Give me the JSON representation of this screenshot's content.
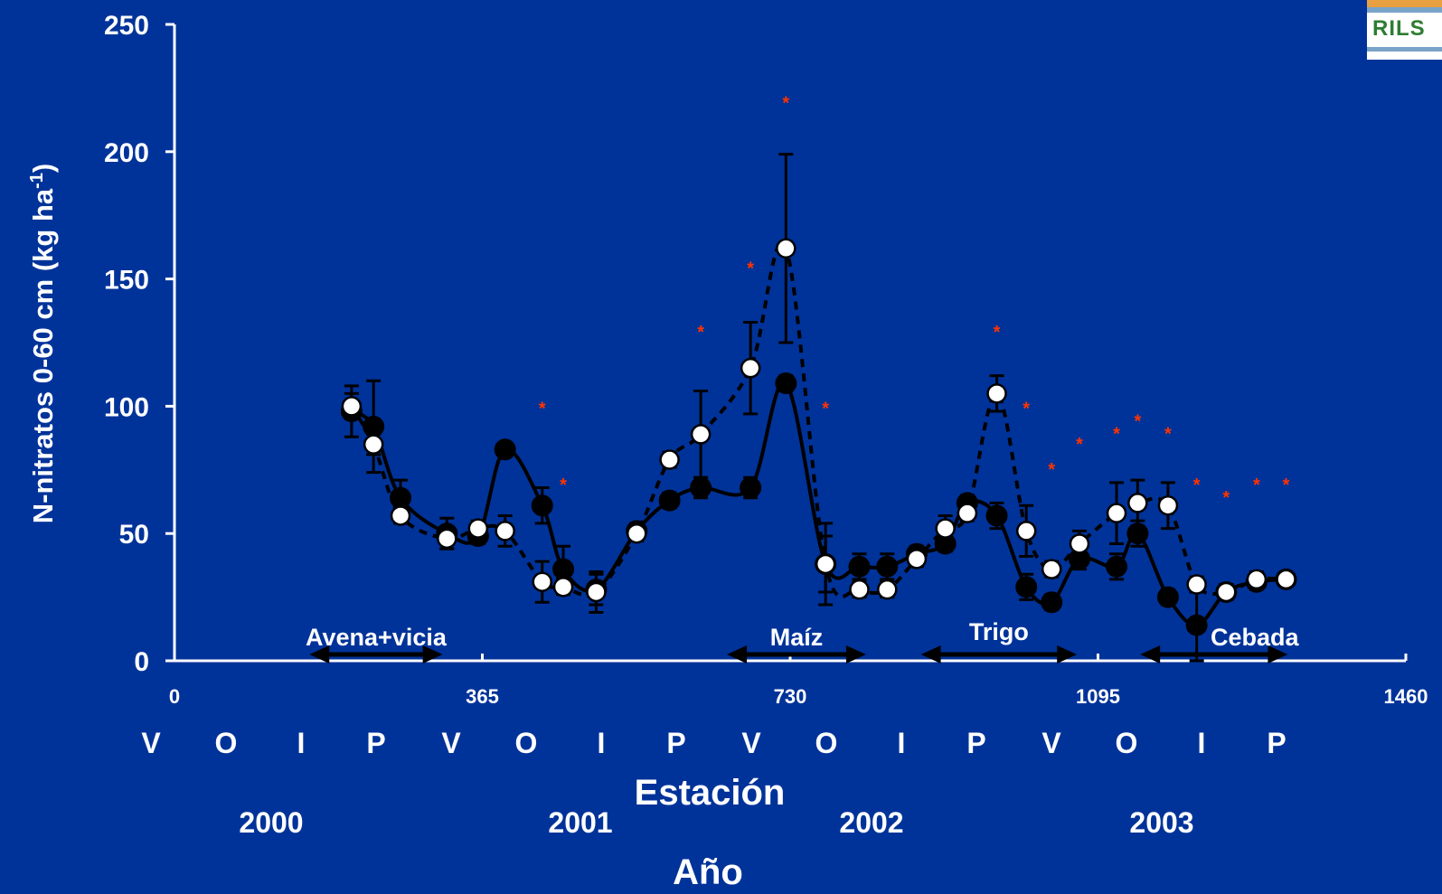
{
  "logo": {
    "text": "RILS"
  },
  "chart_data": {
    "type": "line",
    "ylabel": "N-nitratos 0-60 cm (kg ha",
    "ylabel_sup": "-1",
    "ylabel_close": ")",
    "xlabel": "Estación",
    "xlabel2": "Año",
    "xlim": [
      0,
      1460
    ],
    "ylim": [
      0,
      250
    ],
    "yticks": [
      0,
      50,
      100,
      150,
      200,
      250
    ],
    "xticks": [
      0,
      365,
      730,
      1095,
      1460
    ],
    "seasons": [
      "V",
      "O",
      "I",
      "P",
      "V",
      "O",
      "I",
      "P",
      "V",
      "O",
      "I",
      "P",
      "V",
      "O",
      "I",
      "P"
    ],
    "years": [
      "2000",
      "2001",
      "2002",
      "2003"
    ],
    "crops": [
      {
        "label": "Avena+vicia",
        "start": 160,
        "end": 318
      },
      {
        "label": "Maíz",
        "start": 655,
        "end": 820
      },
      {
        "label": "Trigo",
        "start": 885,
        "end": 1070
      },
      {
        "label": "Cebada",
        "start": 1145,
        "end": 1320
      }
    ],
    "series": [
      {
        "style": "solid-filled",
        "color": "#000000",
        "points": [
          {
            "x": 210,
            "y": 98,
            "err": 10
          },
          {
            "x": 236,
            "y": 92,
            "err": 18
          },
          {
            "x": 268,
            "y": 64,
            "err": 7
          },
          {
            "x": 323,
            "y": 50,
            "err": 6
          },
          {
            "x": 360,
            "y": 49,
            "err": 3
          },
          {
            "x": 392,
            "y": 83,
            "err": 0
          },
          {
            "x": 436,
            "y": 61,
            "err": 7
          },
          {
            "x": 461,
            "y": 36,
            "err": 9
          },
          {
            "x": 500,
            "y": 28,
            "err": 6
          },
          {
            "x": 548,
            "y": 51,
            "err": 3
          },
          {
            "x": 587,
            "y": 63,
            "err": 3
          },
          {
            "x": 624,
            "y": 68,
            "err": 4
          },
          {
            "x": 683,
            "y": 68,
            "err": 4
          },
          {
            "x": 725,
            "y": 109,
            "err": 3
          },
          {
            "x": 772,
            "y": 38,
            "err": 11
          },
          {
            "x": 812,
            "y": 37,
            "err": 5
          },
          {
            "x": 845,
            "y": 37,
            "err": 5
          },
          {
            "x": 880,
            "y": 42,
            "err": 3
          },
          {
            "x": 914,
            "y": 46,
            "err": 3
          },
          {
            "x": 940,
            "y": 62,
            "err": 3
          },
          {
            "x": 975,
            "y": 57,
            "err": 5
          },
          {
            "x": 1010,
            "y": 29,
            "err": 5
          },
          {
            "x": 1040,
            "y": 23,
            "err": 3
          },
          {
            "x": 1073,
            "y": 40,
            "err": 4
          },
          {
            "x": 1117,
            "y": 37,
            "err": 5
          },
          {
            "x": 1142,
            "y": 50,
            "err": 5
          },
          {
            "x": 1178,
            "y": 25,
            "err": 3
          },
          {
            "x": 1212,
            "y": 14,
            "err": 14
          },
          {
            "x": 1247,
            "y": 27,
            "err": 3
          },
          {
            "x": 1283,
            "y": 31,
            "err": 3
          },
          {
            "x": 1318,
            "y": 32,
            "err": 2
          }
        ]
      },
      {
        "style": "dashed-open",
        "color": "#ffffff",
        "points": [
          {
            "x": 210,
            "y": 100,
            "err": 5
          },
          {
            "x": 236,
            "y": 85,
            "err": 4
          },
          {
            "x": 268,
            "y": 57,
            "err": 3
          },
          {
            "x": 323,
            "y": 48,
            "err": 4
          },
          {
            "x": 360,
            "y": 52,
            "err": 3
          },
          {
            "x": 392,
            "y": 51,
            "err": 6
          },
          {
            "x": 436,
            "y": 31,
            "err": 8
          },
          {
            "x": 461,
            "y": 29,
            "err": 3
          },
          {
            "x": 500,
            "y": 27,
            "err": 8
          },
          {
            "x": 548,
            "y": 50,
            "err": 3
          },
          {
            "x": 587,
            "y": 79,
            "err": 3
          },
          {
            "x": 624,
            "y": 89,
            "err": 17
          },
          {
            "x": 683,
            "y": 115,
            "err": 18
          },
          {
            "x": 725,
            "y": 162,
            "err": 37
          },
          {
            "x": 772,
            "y": 38,
            "err": 16
          },
          {
            "x": 812,
            "y": 28,
            "err": 3
          },
          {
            "x": 845,
            "y": 28,
            "err": 3
          },
          {
            "x": 880,
            "y": 40,
            "err": 3
          },
          {
            "x": 914,
            "y": 52,
            "err": 5
          },
          {
            "x": 940,
            "y": 58,
            "err": 3
          },
          {
            "x": 975,
            "y": 105,
            "err": 7
          },
          {
            "x": 1010,
            "y": 51,
            "err": 10
          },
          {
            "x": 1040,
            "y": 36,
            "err": 3
          },
          {
            "x": 1073,
            "y": 46,
            "err": 5
          },
          {
            "x": 1117,
            "y": 58,
            "err": 12
          },
          {
            "x": 1142,
            "y": 62,
            "err": 9
          },
          {
            "x": 1178,
            "y": 61,
            "err": 9
          },
          {
            "x": 1212,
            "y": 30,
            "err": 3
          },
          {
            "x": 1247,
            "y": 27,
            "err": 3
          },
          {
            "x": 1283,
            "y": 32,
            "err": 3
          },
          {
            "x": 1318,
            "y": 32,
            "err": 2
          }
        ]
      }
    ],
    "significance": {
      "symbol": "*",
      "color": "#ff3300",
      "points": [
        {
          "x": 436,
          "y": 100
        },
        {
          "x": 461,
          "y": 70
        },
        {
          "x": 624,
          "y": 130
        },
        {
          "x": 683,
          "y": 155
        },
        {
          "x": 725,
          "y": 220
        },
        {
          "x": 772,
          "y": 100
        },
        {
          "x": 975,
          "y": 130
        },
        {
          "x": 1010,
          "y": 100
        },
        {
          "x": 1040,
          "y": 76
        },
        {
          "x": 1073,
          "y": 86
        },
        {
          "x": 1117,
          "y": 90
        },
        {
          "x": 1142,
          "y": 95
        },
        {
          "x": 1178,
          "y": 90
        },
        {
          "x": 1212,
          "y": 70
        },
        {
          "x": 1247,
          "y": 65
        },
        {
          "x": 1283,
          "y": 70
        },
        {
          "x": 1318,
          "y": 70
        }
      ]
    }
  }
}
